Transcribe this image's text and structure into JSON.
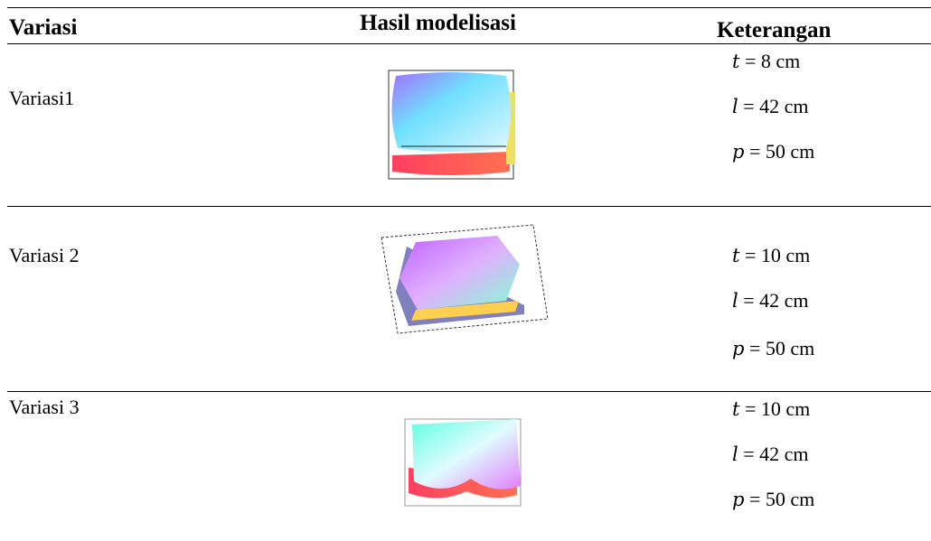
{
  "header": {
    "col1": "Variasi",
    "col2": "Hasil modelisasi",
    "col3": "Keterangan"
  },
  "rows": [
    {
      "label": "Variasi1",
      "items": [
        {
          "var": "t",
          "text": " = 8 cm"
        },
        {
          "var": "l",
          "text": " = 42 cm"
        },
        {
          "var": "p",
          "text": " = 50 cm"
        }
      ]
    },
    {
      "label": "Variasi 2",
      "items": [
        {
          "var": "t",
          "text": " = 10 cm"
        },
        {
          "var": "l",
          "text": " = 42 cm"
        },
        {
          "var": "p",
          "text": " = 50 cm"
        }
      ]
    },
    {
      "label": "Variasi 3",
      "items": [
        {
          "var": "t",
          "text": " = 10 cm"
        },
        {
          "var": "l",
          "text": " = 42 cm"
        },
        {
          "var": "p",
          "text": " = 50 cm"
        }
      ]
    }
  ]
}
